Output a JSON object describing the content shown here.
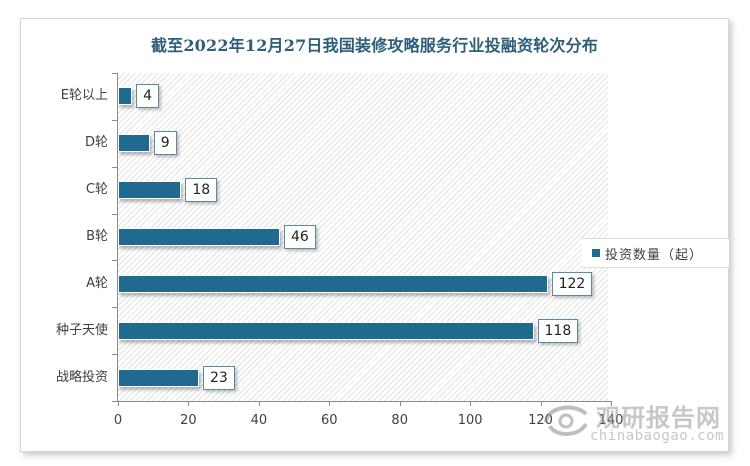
{
  "chart_data": {
    "type": "bar",
    "orientation": "horizontal",
    "title": "截至2022年12月27日我国装修攻略服务行业投融资轮次分布",
    "categories": [
      "E轮以上",
      "D轮",
      "C轮",
      "B轮",
      "A轮",
      "种子天使",
      "战略投资"
    ],
    "series": [
      {
        "name": "投资数量（起）",
        "values": [
          4,
          9,
          18,
          46,
          122,
          118,
          23
        ],
        "color": "#1f6a8e"
      }
    ],
    "xlabel": "",
    "ylabel": "",
    "xlim": [
      0,
      140
    ],
    "xticks": [
      0,
      20,
      40,
      60,
      80,
      100,
      120,
      140
    ],
    "data_labels": true,
    "grid": false,
    "legend_position": "right"
  },
  "title": "截至2022年12月27日我国装修攻略服务行业投融资轮次分布",
  "categories": [
    {
      "label": "E轮以上",
      "value": "4"
    },
    {
      "label": "D轮",
      "value": "9"
    },
    {
      "label": "C轮",
      "value": "18"
    },
    {
      "label": "B轮",
      "value": "46"
    },
    {
      "label": "A轮",
      "value": "122"
    },
    {
      "label": "种子天使",
      "value": "118"
    },
    {
      "label": "战略投资",
      "value": "23"
    }
  ],
  "x_ticks": [
    "0",
    "20",
    "40",
    "60",
    "80",
    "100",
    "120",
    "140"
  ],
  "legend": {
    "label": "投资数量（起）",
    "color": "#1f6a8e"
  },
  "watermark": {
    "cn": "观研报告网",
    "en": "chinabaogao.com"
  }
}
